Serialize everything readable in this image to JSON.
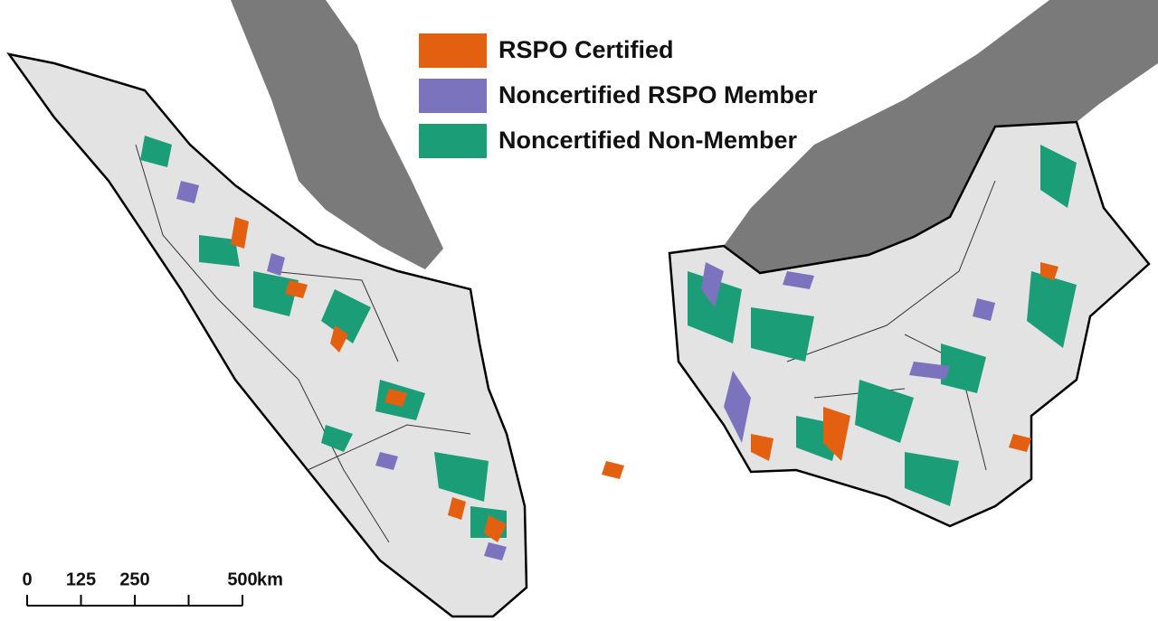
{
  "legend": {
    "items": [
      {
        "label": "RSPO Certified",
        "color": "#e2600f"
      },
      {
        "label": "Noncertified RSPO Member",
        "color": "#7b73bd"
      },
      {
        "label": "Noncertified Non-Member",
        "color": "#1b9e77"
      }
    ]
  },
  "scale_bar": {
    "range": [
      0,
      500
    ],
    "ticks": [
      0,
      125,
      250,
      500
    ],
    "unlabeled_ticks": [
      375
    ],
    "unit": "km"
  }
}
